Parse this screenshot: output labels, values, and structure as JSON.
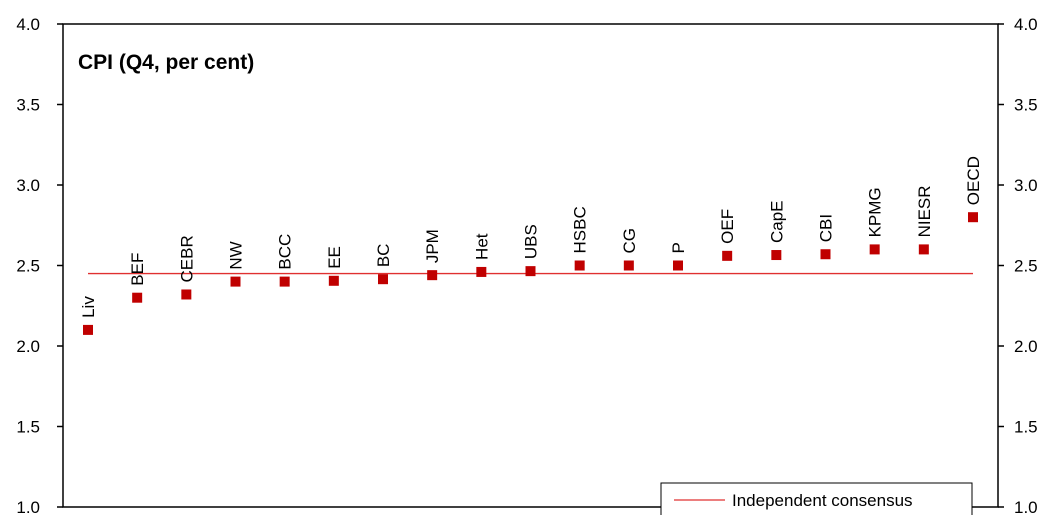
{
  "chart_data": {
    "type": "scatter",
    "title": "CPI (Q4, per cent)",
    "ylim": [
      1.0,
      4.0
    ],
    "yticks": [
      "1.0",
      "1.5",
      "2.0",
      "2.5",
      "3.0",
      "3.5",
      "4.0"
    ],
    "y_axes": "left-and-right",
    "grid": false,
    "legend_position": "bottom-right",
    "categories": [
      "Liv",
      "BEF",
      "CEBR",
      "NW",
      "BCC",
      "EE",
      "BC",
      "JPM",
      "Het",
      "UBS",
      "HSBC",
      "CG",
      "P",
      "OEF",
      "CapE",
      "CBI",
      "KPMG",
      "NIESR",
      "OECD"
    ],
    "series": [
      {
        "values": [
          2.1,
          2.3,
          2.32,
          2.4,
          2.4,
          2.405,
          2.415,
          2.44,
          2.46,
          2.465,
          2.5,
          2.5,
          2.5,
          2.56,
          2.565,
          2.57,
          2.6,
          2.6,
          2.8
        ],
        "color": "#C00000",
        "marker": "square"
      },
      {
        "name": "Independent consensus",
        "type": "line",
        "value": 2.45,
        "color": "#E03030"
      }
    ]
  }
}
